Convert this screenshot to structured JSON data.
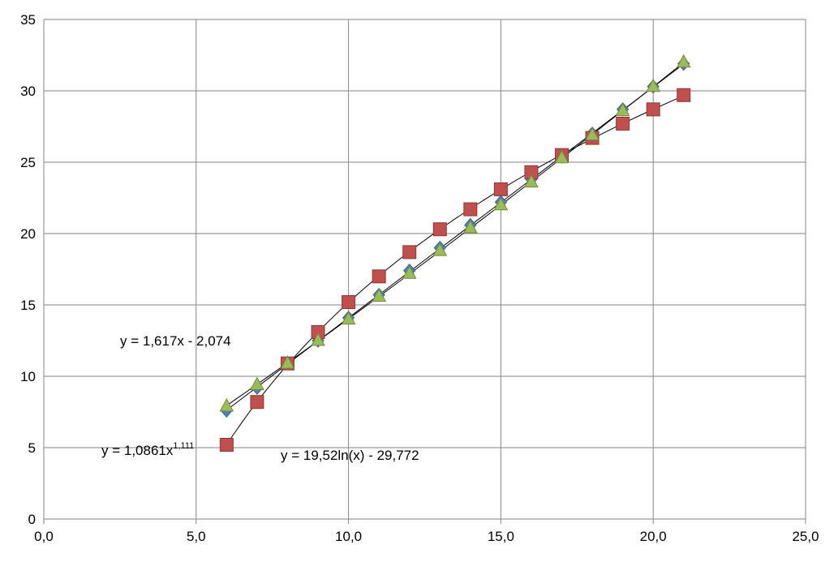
{
  "chart_data": {
    "type": "scatter",
    "xlim": [
      0,
      25
    ],
    "ylim": [
      0,
      35
    ],
    "x_ticks": [
      0,
      5,
      10,
      15,
      20,
      25
    ],
    "y_ticks": [
      0,
      5,
      10,
      15,
      20,
      25,
      30,
      35
    ],
    "x_tick_labels": [
      "0,0",
      "5,0",
      "10,0",
      "15,0",
      "20,0",
      "25,0"
    ],
    "y_tick_labels": [
      "0",
      "5",
      "10",
      "15",
      "20",
      "25",
      "30",
      "35"
    ],
    "grid": true,
    "series": [
      {
        "marker": "diamond",
        "color": "#4F81BD",
        "x": [
          6,
          7,
          8,
          9,
          10,
          11,
          12,
          13,
          14,
          15,
          16,
          17,
          18,
          19,
          20,
          21
        ],
        "y": [
          7.6,
          9.2,
          10.9,
          12.5,
          14.1,
          15.7,
          17.4,
          19.0,
          20.6,
          22.2,
          23.8,
          25.4,
          27.0,
          28.7,
          30.3,
          31.9
        ],
        "trendline": {
          "kind": "linear",
          "equation": "y = 1,617x - 2,074"
        }
      },
      {
        "marker": "square",
        "color": "#C0504D",
        "x": [
          6,
          7,
          8,
          9,
          10,
          11,
          12,
          13,
          14,
          15,
          16,
          17,
          18,
          19,
          20,
          21
        ],
        "y": [
          5.2,
          8.2,
          10.9,
          13.1,
          15.2,
          17.0,
          18.7,
          20.3,
          21.7,
          23.1,
          24.3,
          25.5,
          26.7,
          27.7,
          28.7,
          29.7
        ],
        "trendline": {
          "kind": "logarithmic",
          "equation": "y = 19,52ln(x) - 29,772"
        }
      },
      {
        "marker": "triangle",
        "color": "#9BBB59",
        "x": [
          6,
          7,
          8,
          9,
          10,
          11,
          12,
          13,
          14,
          15,
          16,
          17,
          18,
          19,
          20,
          21
        ],
        "y": [
          7.9,
          9.4,
          10.9,
          12.5,
          14.0,
          15.6,
          17.2,
          18.8,
          20.4,
          22.0,
          23.6,
          25.3,
          26.9,
          28.6,
          30.3,
          32.0
        ],
        "trendline": {
          "kind": "power",
          "equation": "y = 1,0861x",
          "exponent": "1,111"
        }
      }
    ]
  }
}
